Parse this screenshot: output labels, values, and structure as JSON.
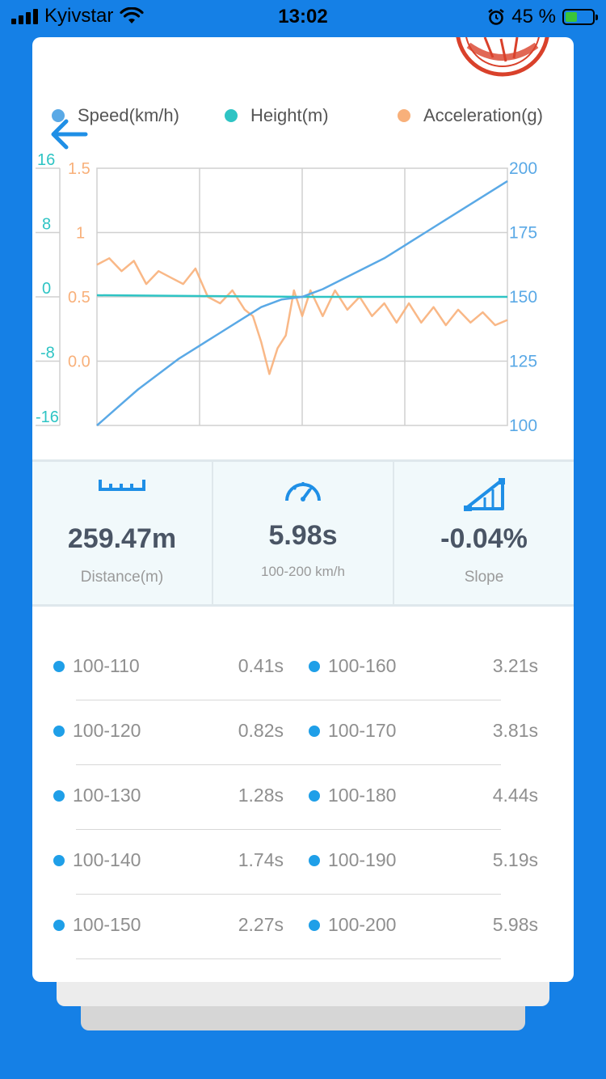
{
  "status_bar": {
    "carrier": "Kyivstar",
    "time": "13:02",
    "battery_text": "45 %",
    "battery_level": 0.45
  },
  "colors": {
    "speed": "#5aa9e6",
    "height": "#2ec4c4",
    "acceleration": "#f8b07a",
    "grid": "#d0d0d0",
    "background": "#1580e6"
  },
  "legend": [
    {
      "label": "Speed(km/h)",
      "color": "#5aa9e6"
    },
    {
      "label": "Height(m)",
      "color": "#2ec4c4"
    },
    {
      "label": "Acceleration(g)",
      "color": "#f8b07a"
    }
  ],
  "chart_data": {
    "type": "line",
    "axes": {
      "height_ticks": [
        "16",
        "8",
        "0",
        "-8",
        "-16"
      ],
      "acceleration_ticks": [
        "1.5",
        "1",
        "0.5",
        "0.0"
      ],
      "speed_ticks": [
        "200",
        "175",
        "150",
        "125",
        "100"
      ],
      "height_range": [
        -16,
        16
      ],
      "acceleration_range": [
        -0.5,
        1.5
      ],
      "speed_range": [
        100,
        200
      ]
    },
    "grid": true,
    "series": [
      {
        "name": "Speed(km/h)",
        "x": [
          0,
          0.05,
          0.1,
          0.15,
          0.2,
          0.25,
          0.3,
          0.35,
          0.4,
          0.45,
          0.5,
          0.55,
          0.6,
          0.65,
          0.7,
          0.75,
          0.8,
          0.85,
          0.9,
          0.95,
          1.0
        ],
        "values": [
          100,
          107,
          114,
          120,
          126,
          131,
          136,
          141,
          146,
          149,
          150,
          153,
          157,
          161,
          165,
          170,
          175,
          180,
          185,
          190,
          195
        ]
      },
      {
        "name": "Height(m)",
        "x": [
          0,
          0.25,
          0.5,
          0.75,
          1.0
        ],
        "values": [
          0.2,
          0.1,
          0.0,
          0.0,
          0.0
        ]
      },
      {
        "name": "Acceleration(g)",
        "x": [
          0,
          0.03,
          0.06,
          0.09,
          0.12,
          0.15,
          0.18,
          0.21,
          0.24,
          0.27,
          0.3,
          0.33,
          0.36,
          0.38,
          0.4,
          0.42,
          0.44,
          0.46,
          0.48,
          0.5,
          0.52,
          0.55,
          0.58,
          0.61,
          0.64,
          0.67,
          0.7,
          0.73,
          0.76,
          0.79,
          0.82,
          0.85,
          0.88,
          0.91,
          0.94,
          0.97,
          1.0
        ],
        "values": [
          0.75,
          0.8,
          0.7,
          0.78,
          0.6,
          0.7,
          0.65,
          0.6,
          0.72,
          0.5,
          0.45,
          0.55,
          0.4,
          0.35,
          0.15,
          -0.1,
          0.1,
          0.2,
          0.55,
          0.35,
          0.55,
          0.35,
          0.55,
          0.4,
          0.5,
          0.35,
          0.45,
          0.3,
          0.45,
          0.3,
          0.42,
          0.28,
          0.4,
          0.3,
          0.38,
          0.28,
          0.32
        ]
      }
    ]
  },
  "stats": {
    "distance": {
      "value": "259.47m",
      "label": "Distance(m)"
    },
    "time": {
      "value": "5.98s",
      "label": "100-200 km/h"
    },
    "slope": {
      "value": "-0.04%",
      "label": "Slope"
    }
  },
  "times": [
    {
      "left_range": "100-110",
      "left_time": "0.41s",
      "right_range": "100-160",
      "right_time": "3.21s"
    },
    {
      "left_range": "100-120",
      "left_time": "0.82s",
      "right_range": "100-170",
      "right_time": "3.81s"
    },
    {
      "left_range": "100-130",
      "left_time": "1.28s",
      "right_range": "100-180",
      "right_time": "4.44s"
    },
    {
      "left_range": "100-140",
      "left_time": "1.74s",
      "right_range": "100-190",
      "right_time": "5.19s"
    },
    {
      "left_range": "100-150",
      "left_time": "2.27s",
      "right_range": "100-200",
      "right_time": "5.98s"
    }
  ],
  "icons": {
    "back": "arrow-left-icon",
    "distance": "ruler-icon",
    "time": "speedometer-icon",
    "slope": "slope-icon",
    "stamp": "stamp-icon"
  }
}
